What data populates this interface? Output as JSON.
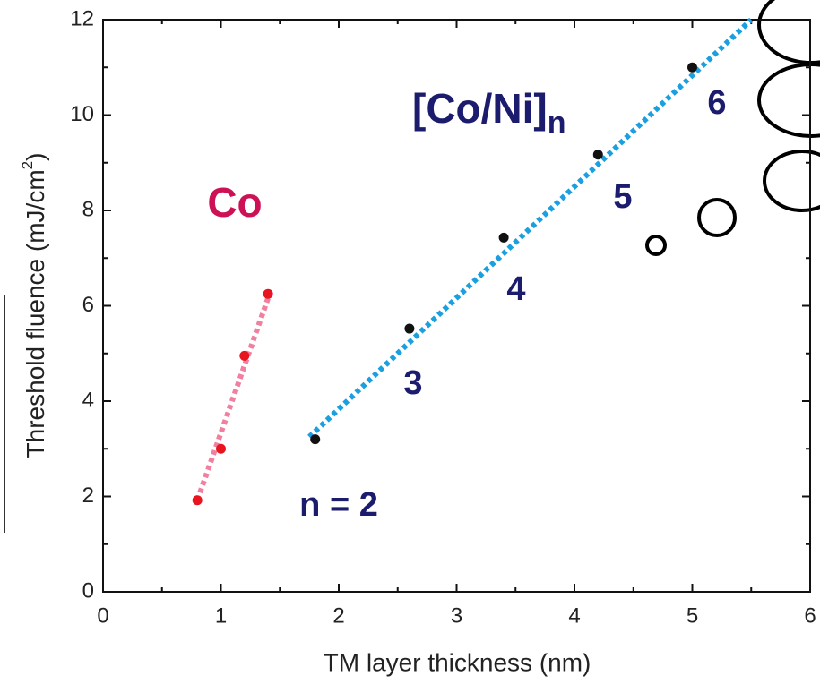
{
  "chart_data": {
    "type": "scatter",
    "xlabel": "TM layer thickness (nm)",
    "ylabel": "Threshold fluence (mJ/cm",
    "ylabel_sup": "2",
    "ylabel_end": ")",
    "xlim": [
      0,
      6
    ],
    "xticks": [
      0,
      1,
      2,
      3,
      4,
      5,
      6
    ],
    "ylim": [
      0,
      12
    ],
    "yticks": [
      0,
      2,
      4,
      6,
      8,
      10,
      12
    ],
    "series": [
      {
        "name": "Co",
        "color": "#e8141e",
        "fit_color": "#f07fa0",
        "x": [
          0.8,
          1.0,
          1.2,
          1.4
        ],
        "values": [
          1.92,
          3.0,
          4.95,
          6.25
        ],
        "fit_x": [
          0.8,
          1.42
        ],
        "fit_y": [
          1.92,
          6.3
        ]
      },
      {
        "name": "[Co/Ni]",
        "name_sub": "n",
        "color": "#111111",
        "fit_color": "#1aa0e0",
        "x": [
          1.8,
          2.6,
          3.4,
          4.2,
          5.0
        ],
        "values": [
          3.2,
          5.52,
          7.43,
          9.17,
          11.0
        ],
        "fit_x": [
          1.75,
          5.5
        ],
        "fit_y": [
          3.25,
          12.0
        ]
      }
    ],
    "annotations": [
      "n = 2",
      "3",
      "4",
      "5",
      "6"
    ]
  }
}
